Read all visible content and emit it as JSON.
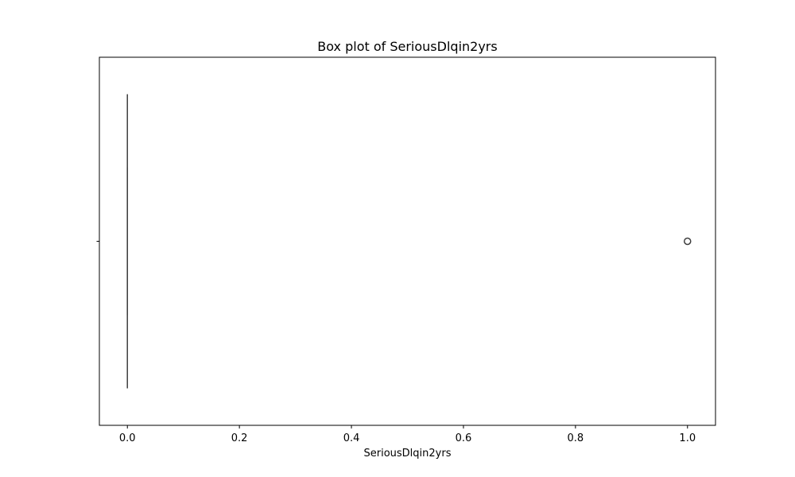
{
  "chart_data": {
    "type": "box",
    "title": "Box plot of SeriousDlqin2yrs",
    "xlabel": "SeriousDlqin2yrs",
    "ylabel": "",
    "xlim": [
      -0.05,
      1.05
    ],
    "x_ticks": [
      0.0,
      0.2,
      0.4,
      0.6,
      0.8,
      1.0
    ],
    "x_tick_labels": [
      "0.0",
      "0.2",
      "0.4",
      "0.6",
      "0.8",
      "1.0"
    ],
    "orientation": "horizontal",
    "grid": false,
    "box": {
      "min": 0,
      "q1": 0,
      "median": 0,
      "q3": 0,
      "max": 0,
      "outliers": [
        1.0
      ]
    },
    "colors": {
      "box_edge": "#3f3f3f",
      "outlier_edge": "#3f3f3f",
      "axes": "#000000"
    }
  }
}
